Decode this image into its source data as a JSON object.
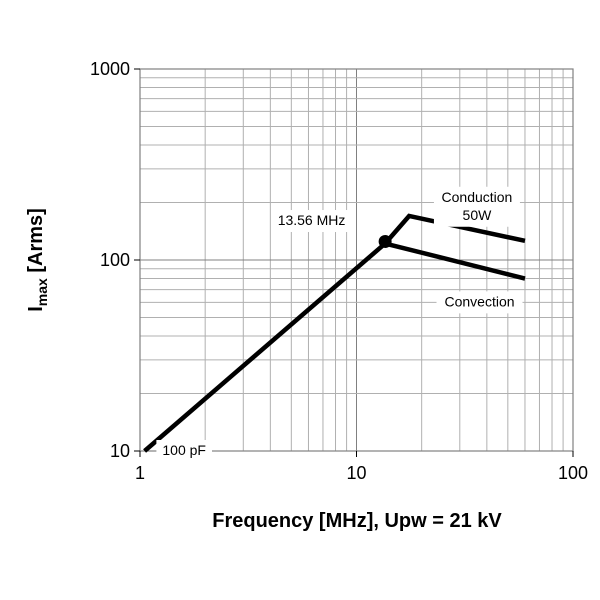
{
  "chart_data": {
    "type": "line",
    "xscale": "log",
    "yscale": "log",
    "xlim": [
      1,
      100
    ],
    "ylim": [
      10,
      1000
    ],
    "grid": true,
    "xlabel": "Frequency [MHz], Upw = 21 kV",
    "ylabel": {
      "main": "I",
      "sub": "max",
      "rest": " [Arms]"
    },
    "x_ticks": [
      {
        "value": 1,
        "label": "1"
      },
      {
        "value": 10,
        "label": "10"
      },
      {
        "value": 100,
        "label": "100"
      }
    ],
    "y_ticks": [
      {
        "value": 10,
        "label": "10"
      },
      {
        "value": 100,
        "label": "100"
      },
      {
        "value": 1000,
        "label": "1000"
      }
    ],
    "series": [
      {
        "name": "100 pF",
        "x": [
          1.05,
          13.56
        ],
        "y": [
          10,
          122
        ]
      },
      {
        "name": "Conduction 50W",
        "x": [
          13.56,
          17.5,
          60
        ],
        "y": [
          122,
          170,
          126
        ]
      },
      {
        "name": "Convection",
        "x": [
          13.56,
          60
        ],
        "y": [
          122,
          80
        ]
      }
    ],
    "marker": {
      "x": 13.56,
      "y": 125,
      "label": "13.56 MHz"
    },
    "annotations": [
      {
        "id": "label-100pf",
        "lines": [
          "100 pF"
        ],
        "x": 1.6,
        "y": 10
      },
      {
        "id": "label-13mhz",
        "lines": [
          "13.56 MHz"
        ],
        "x": 6.2,
        "y": 160
      },
      {
        "id": "label-conduction",
        "lines": [
          "Conduction",
          "50W"
        ],
        "x": 36,
        "y": 190
      },
      {
        "id": "label-convection",
        "lines": [
          "Convection"
        ],
        "x": 37,
        "y": 60
      }
    ]
  }
}
